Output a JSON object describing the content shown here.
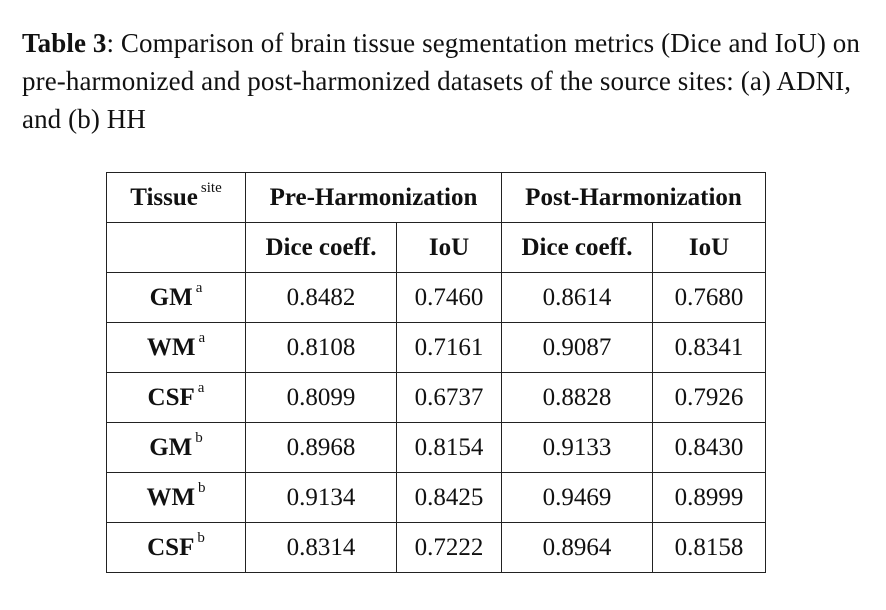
{
  "caption": {
    "label": "Table 3",
    "text": ": Comparison of brain tissue segmentation metrics (Dice and IoU) on pre-harmonized and post-harmonized datasets of the source sites: (a) ADNI, and (b) HH"
  },
  "table": {
    "header": {
      "tissue": "Tissue",
      "tissue_sup": "site",
      "pre": "Pre-Harmonization",
      "post": "Post-Harmonization"
    },
    "subheader": {
      "pre_dice": "Dice coeff.",
      "pre_iou": "IoU",
      "post_dice": "Dice coeff.",
      "post_iou": "IoU"
    },
    "rows": [
      {
        "tissue": "GM",
        "site": "a",
        "pre_dice": "0.8482",
        "pre_iou": "0.7460",
        "post_dice": "0.8614",
        "post_iou": "0.7680"
      },
      {
        "tissue": "WM",
        "site": "a",
        "pre_dice": "0.8108",
        "pre_iou": "0.7161",
        "post_dice": "0.9087",
        "post_iou": "0.8341"
      },
      {
        "tissue": "CSF",
        "site": "a",
        "pre_dice": "0.8099",
        "pre_iou": "0.6737",
        "post_dice": "0.8828",
        "post_iou": "0.7926"
      },
      {
        "tissue": "GM",
        "site": "b",
        "pre_dice": "0.8968",
        "pre_iou": "0.8154",
        "post_dice": "0.9133",
        "post_iou": "0.8430"
      },
      {
        "tissue": "WM",
        "site": "b",
        "pre_dice": "0.9134",
        "pre_iou": "0.8425",
        "post_dice": "0.9469",
        "post_iou": "0.8999"
      },
      {
        "tissue": "CSF",
        "site": "b",
        "pre_dice": "0.8314",
        "pre_iou": "0.7222",
        "post_dice": "0.8964",
        "post_iou": "0.8158"
      }
    ]
  }
}
